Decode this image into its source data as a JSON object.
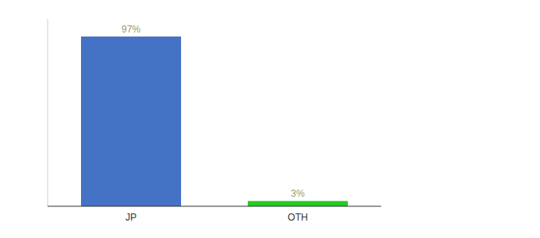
{
  "chart_data": {
    "type": "bar",
    "categories": [
      "JP",
      "OTH"
    ],
    "values": [
      97,
      3
    ],
    "value_labels": [
      "97%",
      "3%"
    ],
    "colors": [
      "#4472c4",
      "#22cc22"
    ],
    "ylim": [
      0,
      107
    ],
    "data_labels": true,
    "tick_labels": "x",
    "grid": false
  }
}
